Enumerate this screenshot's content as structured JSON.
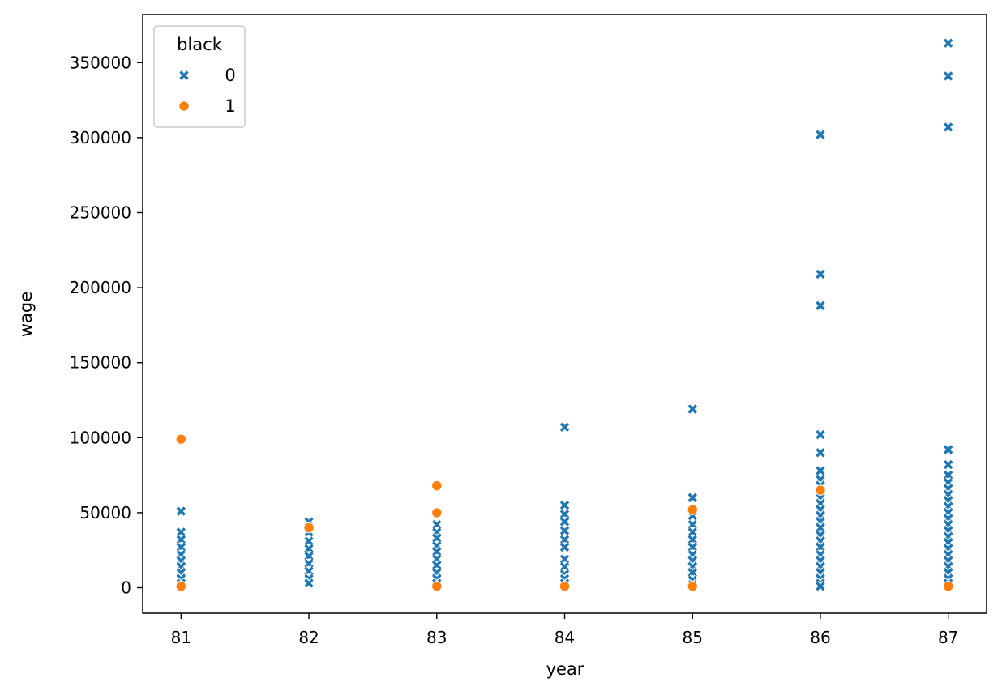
{
  "colors": {
    "series0": "#1f77b4",
    "series1": "#ff7f0e",
    "axis": "#000000",
    "background": "#ffffff",
    "legend_border": "#cccccc"
  },
  "chart_data": {
    "type": "scatter",
    "xlabel": "year",
    "ylabel": "wage",
    "xlim": [
      80.7,
      87.3
    ],
    "ylim": [
      -17000,
      382000
    ],
    "xticks": [
      81,
      82,
      83,
      84,
      85,
      86,
      87
    ],
    "yticks": [
      0,
      50000,
      100000,
      150000,
      200000,
      250000,
      300000,
      350000
    ],
    "grid": false,
    "legend": {
      "title": "black",
      "placement": "top-left"
    },
    "series": [
      {
        "name": "0",
        "marker": "x",
        "color": "#1f77b4",
        "points": [
          [
            81,
            51000
          ],
          [
            81,
            37000
          ],
          [
            81,
            32000
          ],
          [
            81,
            27000
          ],
          [
            81,
            22000
          ],
          [
            81,
            18000
          ],
          [
            81,
            14000
          ],
          [
            81,
            10000
          ],
          [
            81,
            6000
          ],
          [
            81,
            3000
          ],
          [
            81,
            1000
          ],
          [
            82,
            44000
          ],
          [
            82,
            37000
          ],
          [
            82,
            31000
          ],
          [
            82,
            26000
          ],
          [
            82,
            21000
          ],
          [
            82,
            16000
          ],
          [
            82,
            11000
          ],
          [
            82,
            6000
          ],
          [
            82,
            3000
          ],
          [
            83,
            42000
          ],
          [
            83,
            37000
          ],
          [
            83,
            33000
          ],
          [
            83,
            28000
          ],
          [
            83,
            24000
          ],
          [
            83,
            19000
          ],
          [
            83,
            15000
          ],
          [
            83,
            10000
          ],
          [
            83,
            6000
          ],
          [
            83,
            3000
          ],
          [
            83,
            1000
          ],
          [
            84,
            107000
          ],
          [
            84,
            55000
          ],
          [
            84,
            49000
          ],
          [
            84,
            44000
          ],
          [
            84,
            38000
          ],
          [
            84,
            32000
          ],
          [
            84,
            27000
          ],
          [
            84,
            19000
          ],
          [
            84,
            14000
          ],
          [
            84,
            9000
          ],
          [
            84,
            6000
          ],
          [
            84,
            3000
          ],
          [
            84,
            1000
          ],
          [
            85,
            119000
          ],
          [
            85,
            60000
          ],
          [
            85,
            48000
          ],
          [
            85,
            42000
          ],
          [
            85,
            37000
          ],
          [
            85,
            32000
          ],
          [
            85,
            27000
          ],
          [
            85,
            22000
          ],
          [
            85,
            18000
          ],
          [
            85,
            14000
          ],
          [
            85,
            10000
          ],
          [
            85,
            5000
          ],
          [
            85,
            2000
          ],
          [
            86,
            302000
          ],
          [
            86,
            209000
          ],
          [
            86,
            188000
          ],
          [
            86,
            102000
          ],
          [
            86,
            90000
          ],
          [
            86,
            78000
          ],
          [
            86,
            72000
          ],
          [
            86,
            68000
          ],
          [
            86,
            64000
          ],
          [
            86,
            60000
          ],
          [
            86,
            56000
          ],
          [
            86,
            52000
          ],
          [
            86,
            48000
          ],
          [
            86,
            44000
          ],
          [
            86,
            40000
          ],
          [
            86,
            35000
          ],
          [
            86,
            31000
          ],
          [
            86,
            27000
          ],
          [
            86,
            22000
          ],
          [
            86,
            18000
          ],
          [
            86,
            14000
          ],
          [
            86,
            10000
          ],
          [
            86,
            6000
          ],
          [
            86,
            3000
          ],
          [
            86,
            1000
          ],
          [
            87,
            363000
          ],
          [
            87,
            341000
          ],
          [
            87,
            307000
          ],
          [
            87,
            92000
          ],
          [
            87,
            82000
          ],
          [
            87,
            75000
          ],
          [
            87,
            70000
          ],
          [
            87,
            66000
          ],
          [
            87,
            62000
          ],
          [
            87,
            58000
          ],
          [
            87,
            54000
          ],
          [
            87,
            50000
          ],
          [
            87,
            46000
          ],
          [
            87,
            42000
          ],
          [
            87,
            38000
          ],
          [
            87,
            34000
          ],
          [
            87,
            30000
          ],
          [
            87,
            26000
          ],
          [
            87,
            22000
          ],
          [
            87,
            18000
          ],
          [
            87,
            14000
          ],
          [
            87,
            10000
          ],
          [
            87,
            6000
          ],
          [
            87,
            3000
          ]
        ]
      },
      {
        "name": "1",
        "marker": "o",
        "color": "#ff7f0e",
        "points": [
          [
            81,
            99000
          ],
          [
            81,
            1000
          ],
          [
            82,
            40000
          ],
          [
            83,
            68000
          ],
          [
            83,
            50000
          ],
          [
            83,
            1000
          ],
          [
            84,
            1000
          ],
          [
            85,
            52000
          ],
          [
            85,
            1000
          ],
          [
            86,
            65000
          ],
          [
            87,
            1000
          ]
        ]
      }
    ]
  }
}
